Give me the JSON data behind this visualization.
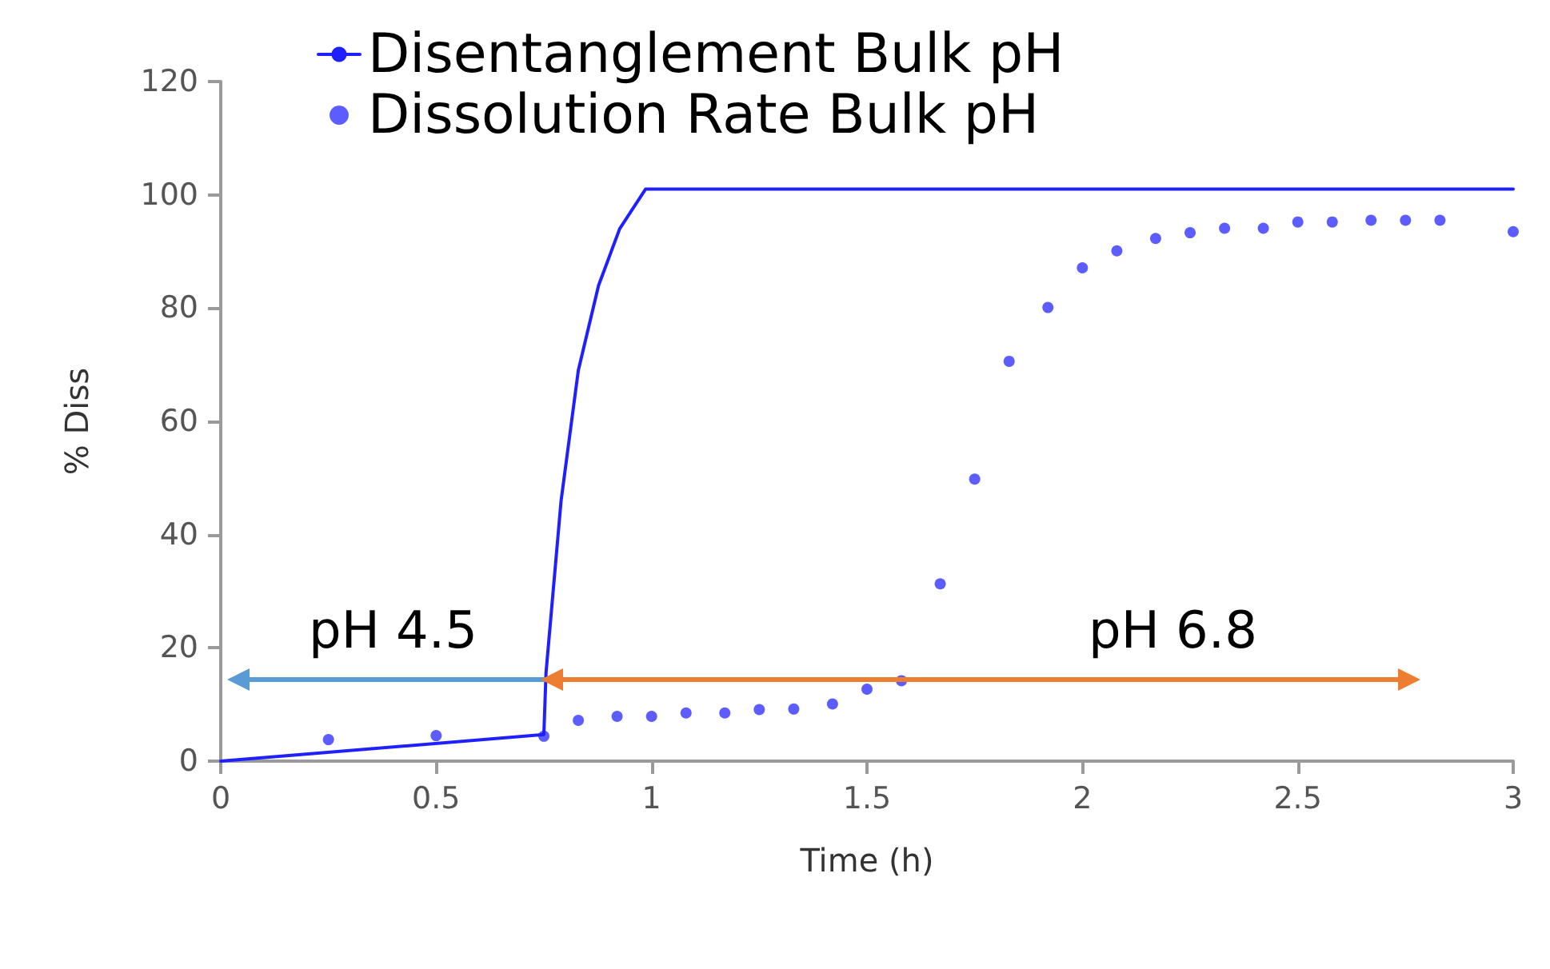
{
  "chart_data": {
    "type": "line",
    "xlabel": "Time (h)",
    "ylabel": "% Diss",
    "xlim": [
      0,
      3
    ],
    "xticks": [
      0,
      0.5,
      1,
      1.5,
      2,
      2.5,
      3
    ],
    "ylim": [
      0,
      120
    ],
    "yticks": [
      0,
      20,
      40,
      60,
      80,
      100,
      120
    ],
    "grid": false,
    "legend": "top",
    "series": [
      {
        "name": "Disentanglement Bulk pH",
        "color": "#2020ff",
        "marker": "none",
        "line_style": "solid",
        "x": [
          0,
          0.75,
          0.755,
          0.79,
          0.83,
          0.877,
          0.926,
          0.986,
          3
        ],
        "values": [
          0,
          4.7,
          15.6,
          46,
          69,
          84,
          94,
          101,
          101
        ]
      },
      {
        "name": "Dissolution Rate Bulk pH",
        "type": "scatter",
        "color": "#3535ff",
        "marker": "circle",
        "x": [
          0.25,
          0.5,
          0.75,
          0.83,
          0.92,
          1,
          1.08,
          1.17,
          1.25,
          1.33,
          1.42,
          1.5,
          1.58,
          1.67,
          1.75,
          1.83,
          1.92,
          2,
          2.08,
          2.17,
          2.25,
          2.33,
          2.42,
          2.5,
          2.58,
          2.67,
          2.75,
          2.83,
          3
        ],
        "values": [
          3.8,
          4.5,
          4.4,
          7.2,
          7.9,
          7.9,
          8.5,
          8.5,
          9.1,
          9.2,
          10.1,
          12.7,
          14.2,
          31.3,
          49.8,
          70.6,
          80.1,
          87.1,
          90.1,
          92.3,
          93.3,
          94.1,
          94.1,
          95.2,
          95.2,
          95.5,
          95.5,
          95.5,
          93.5
        ]
      }
    ],
    "annotations": [
      "pH 4.5",
      "pH 6.8"
    ]
  }
}
